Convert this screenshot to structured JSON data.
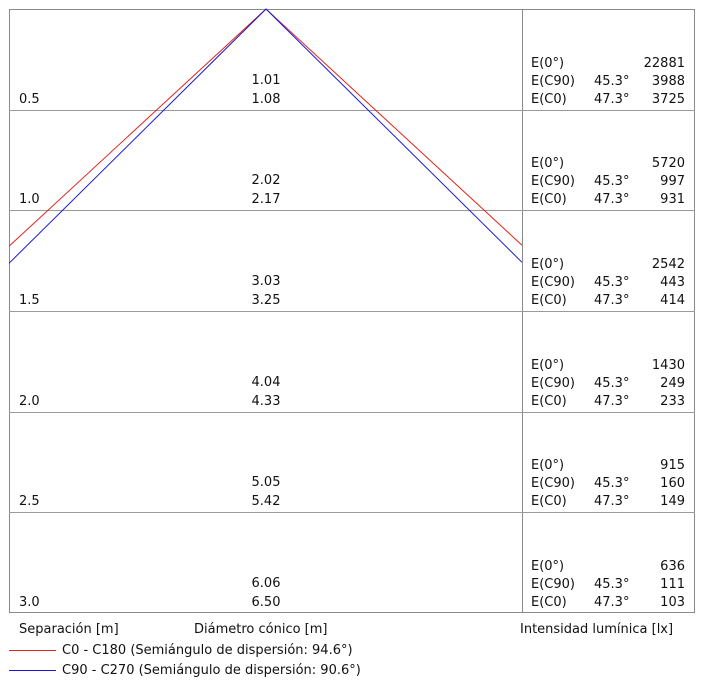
{
  "chart_data": {
    "type": "table",
    "columns": {
      "separation": "Separación [m]",
      "diameter": "Diámetro cónico [m]",
      "illuminance": "Intensidad lumínica [lx]"
    },
    "series": [
      {
        "name": "C0 - C180 (Semiángulo de dispersión: 94.6°)",
        "color": "#e2231a",
        "half_angle": 94.6
      },
      {
        "name": "C90 - C270 (Semiángulo de dispersión: 90.6°)",
        "color": "#1a1ad6",
        "half_angle": 90.6
      }
    ],
    "rows": [
      {
        "separation": "0.5",
        "d_c0": "1.01",
        "d_c90": "1.08",
        "e0": "22881",
        "ec90_angle": "45.3°",
        "ec90": "3988",
        "ec0_angle": "47.3°",
        "ec0": "3725"
      },
      {
        "separation": "1.0",
        "d_c0": "2.02",
        "d_c90": "2.17",
        "e0": "5720",
        "ec90_angle": "45.3°",
        "ec90": "997",
        "ec0_angle": "47.3°",
        "ec0": "931"
      },
      {
        "separation": "1.5",
        "d_c0": "3.03",
        "d_c90": "3.25",
        "e0": "2542",
        "ec90_angle": "45.3°",
        "ec90": "443",
        "ec0_angle": "47.3°",
        "ec0": "414"
      },
      {
        "separation": "2.0",
        "d_c0": "4.04",
        "d_c90": "4.33",
        "e0": "1430",
        "ec90_angle": "45.3°",
        "ec90": "249",
        "ec0_angle": "47.3°",
        "ec0": "233"
      },
      {
        "separation": "2.5",
        "d_c0": "5.05",
        "d_c90": "5.42",
        "e0": "915",
        "ec90_angle": "45.3°",
        "ec90": "160",
        "ec0_angle": "47.3°",
        "ec0": "149"
      },
      {
        "separation": "3.0",
        "d_c0": "6.06",
        "d_c90": "6.50",
        "e0": "636",
        "ec90_angle": "45.3°",
        "ec90": "111",
        "ec0_angle": "47.3°",
        "ec0": "103"
      }
    ],
    "labels": {
      "e0": "E(0°)",
      "ec90": "E(C90)",
      "ec0": "E(C0)"
    }
  }
}
